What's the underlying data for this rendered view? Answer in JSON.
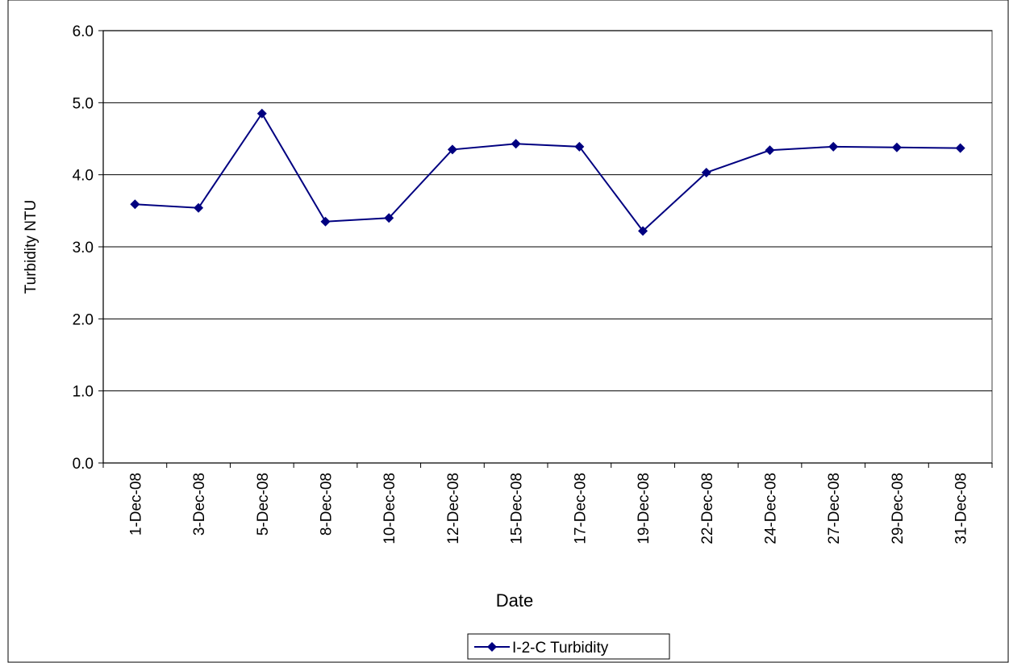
{
  "chart_data": {
    "type": "line",
    "x_label": "Date",
    "y_label": "Turbidity NTU",
    "categories": [
      "1-Dec-08",
      "3-Dec-08",
      "5-Dec-08",
      "8-Dec-08",
      "10-Dec-08",
      "12-Dec-08",
      "15-Dec-08",
      "17-Dec-08",
      "19-Dec-08",
      "22-Dec-08",
      "24-Dec-08",
      "27-Dec-08",
      "29-Dec-08",
      "31-Dec-08"
    ],
    "series": [
      {
        "name": "I-2-C Turbidity",
        "color": "#000080",
        "values": [
          3.59,
          3.54,
          4.85,
          3.35,
          3.4,
          4.35,
          4.43,
          4.39,
          3.22,
          4.03,
          4.34,
          4.39,
          4.38,
          4.37
        ]
      }
    ],
    "ylim": [
      0,
      6
    ],
    "yticks": [
      {
        "value": 0,
        "label": "0.0"
      },
      {
        "value": 1,
        "label": "1.0"
      },
      {
        "value": 2,
        "label": "2.0"
      },
      {
        "value": 3,
        "label": "3.0"
      },
      {
        "value": 4,
        "label": "4.0"
      },
      {
        "value": 5,
        "label": "5.0"
      },
      {
        "value": 6,
        "label": "6.0"
      }
    ],
    "grid": true,
    "legend": "bottom"
  }
}
